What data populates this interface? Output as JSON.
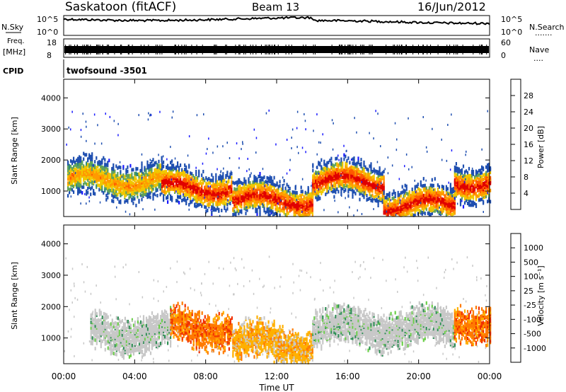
{
  "header": {
    "station": "Saskatoon (fitACF)",
    "beam": "Beam 13",
    "date": "16/Jun/2012"
  },
  "strip_nsky": {
    "left_label": "N.Sky",
    "right_label": "N.Search",
    "right_dots": ".......",
    "ticks": [
      "10^5",
      "10^0"
    ]
  },
  "strip_freq": {
    "left_label_1": "Freq.",
    "left_label_2": "[MHz]",
    "left_ticks": [
      "18",
      "8"
    ],
    "right_ticks": [
      "60",
      "0"
    ],
    "right_label": "Nave",
    "right_dots": "...."
  },
  "cpid": {
    "label": "CPID",
    "value": "twofsound -3501"
  },
  "colors": {
    "power": [
      "#1a1aff",
      "#1f4fb0",
      "#2f8a78",
      "#5fa25c",
      "#f0c800",
      "#ff9a00",
      "#ff5a00",
      "#e00000"
    ],
    "velocity": [
      "#1a3fff",
      "#2f6fb8",
      "#2e8f55",
      "#6cd04a",
      "#c8c8c8",
      "#c8c8c8",
      "#ffb000",
      "#ff7a00",
      "#f03000"
    ]
  },
  "chart_data": [
    {
      "type": "heatmap",
      "title": "",
      "xlabel": "",
      "ylabel": "Slant Range [km]",
      "y_ticks": [
        "1000",
        "2000",
        "3000",
        "4000"
      ],
      "ylim": [
        180,
        4600
      ],
      "xlim": [
        "00:00",
        "24:00"
      ],
      "colorbar_label": "Power [dB]",
      "colorbar_ticks": [
        "28",
        "24",
        "20",
        "16",
        "12",
        "8",
        "4"
      ],
      "echo_bands": [
        {
          "t_start": 0.2,
          "t_end": 5.5,
          "range_center_km": 1350,
          "level": "medium"
        },
        {
          "t_start": 5.5,
          "t_end": 9.5,
          "range_center_km": 1100,
          "level": "strong"
        },
        {
          "t_start": 9.5,
          "t_end": 14.0,
          "range_center_km": 700,
          "level": "strong"
        },
        {
          "t_start": 14.0,
          "t_end": 18.0,
          "range_center_km": 1300,
          "level": "strong"
        },
        {
          "t_start": 18.0,
          "t_end": 22.0,
          "range_center_km": 550,
          "level": "strong"
        },
        {
          "t_start": 22.0,
          "t_end": 24.0,
          "range_center_km": 1300,
          "level": "strong"
        }
      ]
    },
    {
      "type": "heatmap",
      "title": "",
      "xlabel": "Time UT",
      "ylabel": "Slant Range [km]",
      "y_ticks": [
        "1000",
        "2000",
        "3000",
        "4000"
      ],
      "x_ticks": [
        "00:00",
        "04:00",
        "08:00",
        "12:00",
        "16:00",
        "20:00",
        "00:00"
      ],
      "ylim": [
        180,
        4600
      ],
      "xlim": [
        "00:00",
        "24:00"
      ],
      "colorbar_label": "Velocity [m s⁻¹]",
      "colorbar_ticks": [
        "1000",
        "500",
        "100",
        "25",
        "-25",
        "-100",
        "-500",
        "-1000"
      ],
      "echo_bands": [
        {
          "t_start": 1.5,
          "t_end": 6.0,
          "range_center_km": 1150,
          "level": "near-zero"
        },
        {
          "t_start": 6.0,
          "t_end": 9.5,
          "range_center_km": 1300,
          "level": "-500"
        },
        {
          "t_start": 9.5,
          "t_end": 14.0,
          "range_center_km": 800,
          "level": "-100"
        },
        {
          "t_start": 14.0,
          "t_end": 22.0,
          "range_center_km": 1300,
          "level": "near-zero"
        },
        {
          "t_start": 22.0,
          "t_end": 24.0,
          "range_center_km": 1500,
          "level": "-500"
        }
      ]
    }
  ]
}
